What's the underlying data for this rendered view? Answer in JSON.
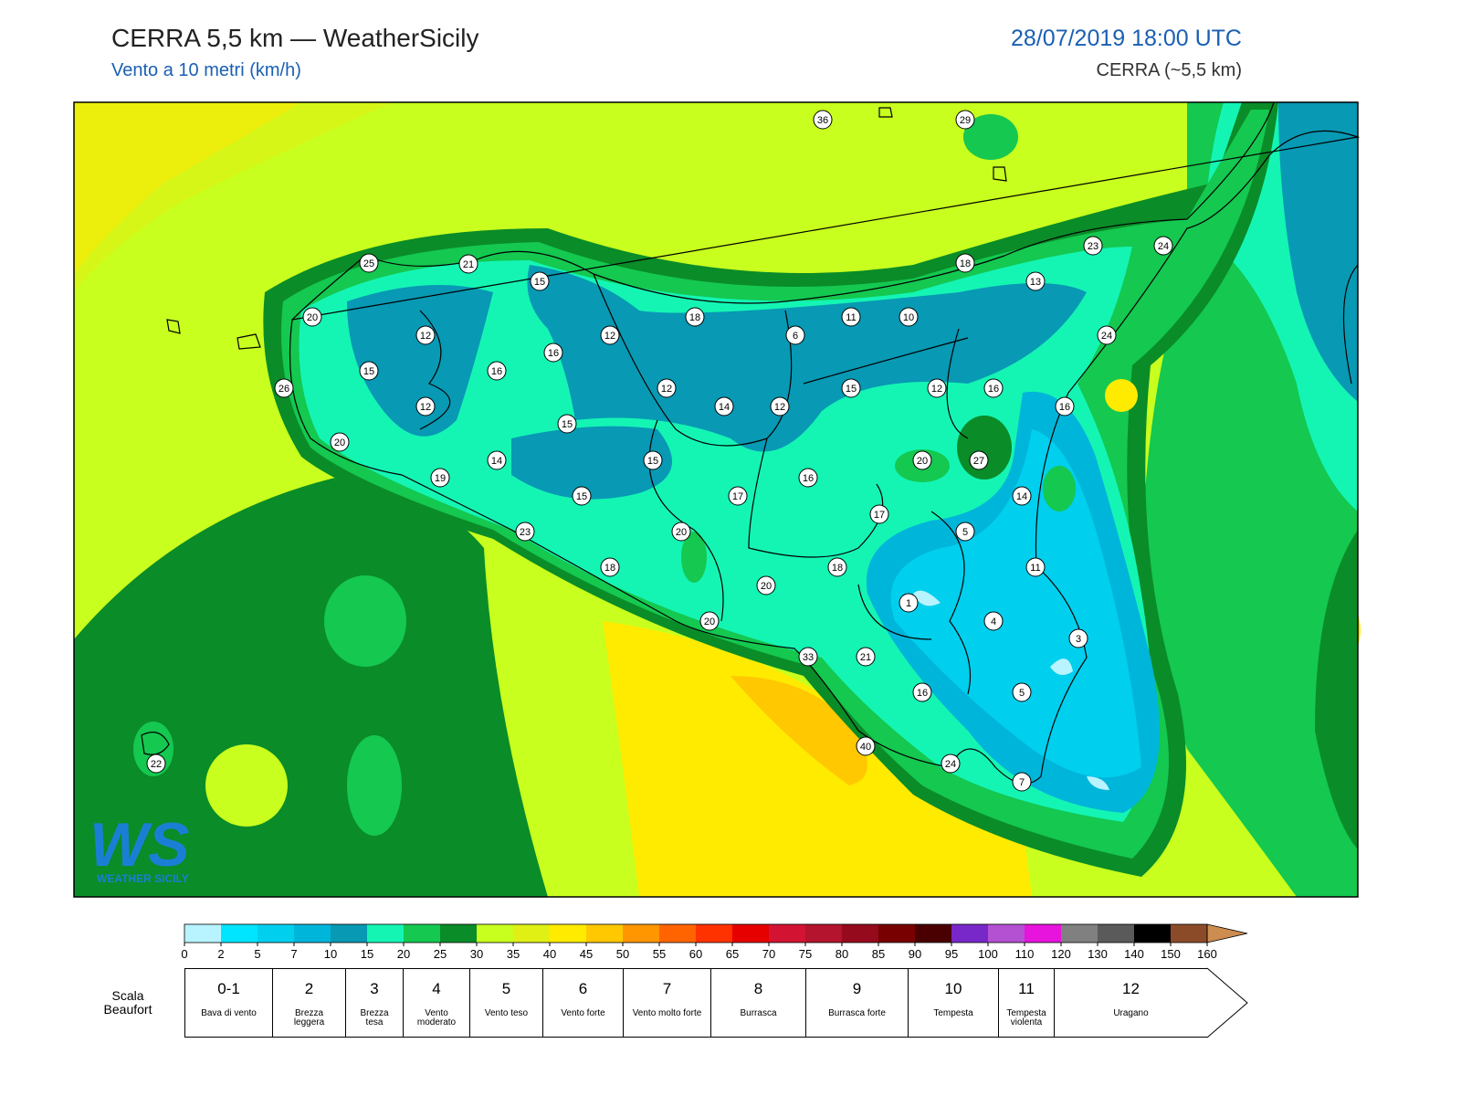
{
  "header": {
    "title": "CERRA 5,5 km — WeatherSicily",
    "subtitle": "Vento a 10 metri (km/h)",
    "datetime": "28/07/2019 18:00 UTC",
    "model": "CERRA (~5,5 km)"
  },
  "map": {
    "stations": [
      36,
      29,
      25,
      21,
      15,
      18,
      18,
      13,
      23,
      24,
      20,
      12,
      12,
      6,
      11,
      10,
      24,
      16,
      15,
      16,
      26,
      12,
      14,
      12,
      15,
      12,
      16,
      12,
      16,
      15,
      20,
      14,
      15,
      20,
      27,
      19,
      16,
      15,
      17,
      14,
      17,
      23,
      20,
      5,
      18,
      18,
      11,
      20,
      1,
      4,
      20,
      3,
      33,
      21,
      16,
      5,
      40,
      24,
      22,
      7
    ]
  },
  "colorbar": {
    "ticks": [
      0,
      2,
      5,
      7,
      10,
      15,
      20,
      25,
      30,
      35,
      40,
      45,
      50,
      55,
      60,
      65,
      70,
      75,
      80,
      85,
      90,
      95,
      100,
      110,
      120,
      130,
      140,
      150,
      160
    ],
    "colors": [
      "#b8f4ff",
      "#00e5ff",
      "#00cfee",
      "#00b5da",
      "#0899b4",
      "#14f5b4",
      "#14c850",
      "#0a8c28",
      "#c8ff1e",
      "#e0f014",
      "#ffeb00",
      "#ffc800",
      "#ff9600",
      "#ff6400",
      "#ff3200",
      "#e60000",
      "#d21432",
      "#b4142d",
      "#960a1e",
      "#780000",
      "#4a0000",
      "#7828c8",
      "#b450d2",
      "#e614dc",
      "#808080",
      "#5a5a5a",
      "#000000",
      "#8c4b28"
    ],
    "extend_color": "#cd8c50"
  },
  "beaufort": {
    "title": "Scala Beaufort",
    "levels": [
      {
        "force": "0-1",
        "label": "Bava di vento"
      },
      {
        "force": "2",
        "label": "Brezza leggera"
      },
      {
        "force": "3",
        "label": "Brezza tesa"
      },
      {
        "force": "4",
        "label": "Vento moderato"
      },
      {
        "force": "5",
        "label": "Vento teso"
      },
      {
        "force": "6",
        "label": "Vento forte"
      },
      {
        "force": "7",
        "label": "Vento molto forte"
      },
      {
        "force": "8",
        "label": "Burrasca"
      },
      {
        "force": "9",
        "label": "Burrasca forte"
      },
      {
        "force": "10",
        "label": "Tempesta"
      },
      {
        "force": "11",
        "label": "Tempesta violenta"
      },
      {
        "force": "12",
        "label": "Uragano"
      }
    ]
  },
  "logo": {
    "initials": "WS",
    "text": "WEATHER SICILY"
  }
}
